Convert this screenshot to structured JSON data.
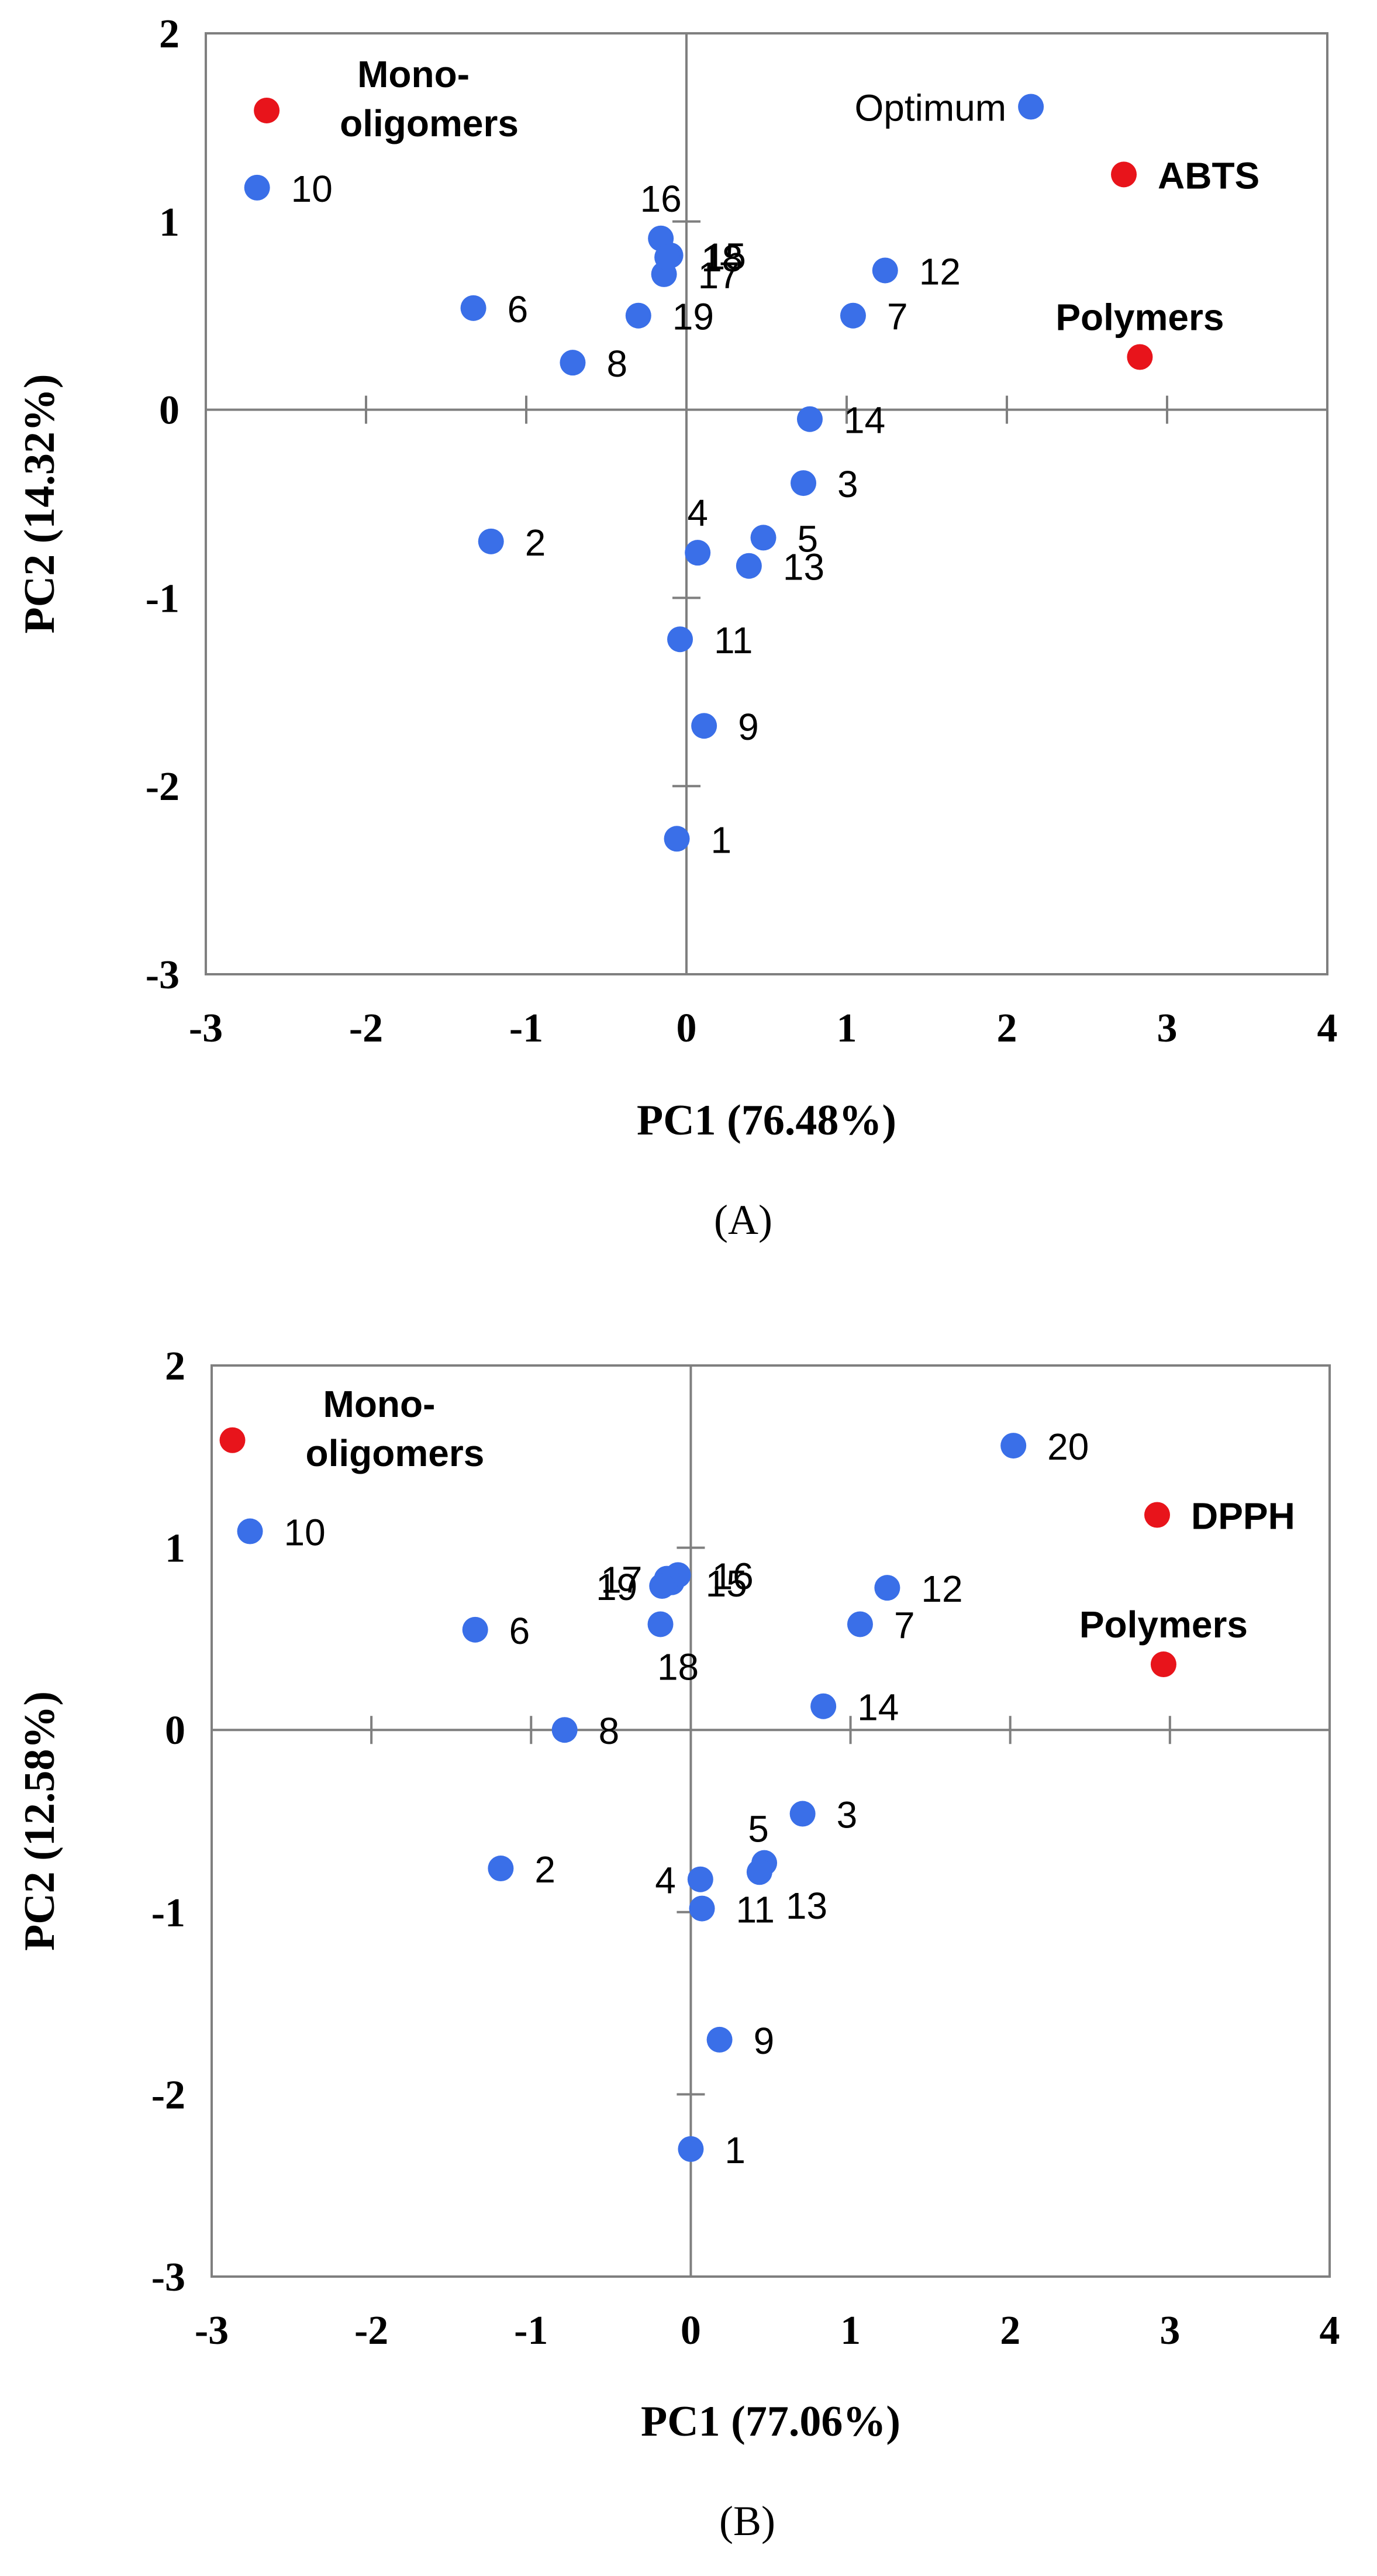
{
  "colors": {
    "sample": "#3A6FE8",
    "variable": "#E8141B",
    "frame": "#7F7F7F",
    "text": "#000000"
  },
  "chart_data": [
    {
      "type": "scatter",
      "panel_label": "(A)",
      "xlabel": "PC1 (76.48%)",
      "ylabel": "PC2 (14.32%)",
      "xlim": [
        -3,
        4
      ],
      "ylim": [
        -3,
        2
      ],
      "xticks": [
        "-3",
        "-2",
        "-1",
        "0",
        "1",
        "2",
        "3",
        "4"
      ],
      "yticks": [
        "2",
        "1",
        "0",
        "-1",
        "-2",
        "-3"
      ],
      "points": [
        {
          "label": "1",
          "x": -0.06,
          "y": -2.28,
          "group": "sample",
          "label_pos": "right"
        },
        {
          "label": "2",
          "x": -1.22,
          "y": -0.7,
          "group": "sample",
          "label_pos": "right"
        },
        {
          "label": "3",
          "x": 0.73,
          "y": -0.39,
          "group": "sample",
          "label_pos": "right"
        },
        {
          "label": "4",
          "x": 0.07,
          "y": -0.76,
          "group": "sample",
          "label_pos": "above"
        },
        {
          "label": "5",
          "x": 0.48,
          "y": -0.68,
          "group": "sample",
          "label_pos": "right"
        },
        {
          "label": "6",
          "x": -1.33,
          "y": 0.54,
          "group": "sample",
          "label_pos": "right"
        },
        {
          "label": "7",
          "x": 1.04,
          "y": 0.5,
          "group": "sample",
          "label_pos": "right"
        },
        {
          "label": "8",
          "x": -0.71,
          "y": 0.25,
          "group": "sample",
          "label_pos": "right"
        },
        {
          "label": "9",
          "x": 0.11,
          "y": -1.68,
          "group": "sample",
          "label_pos": "right"
        },
        {
          "label": "10",
          "x": -2.68,
          "y": 1.18,
          "group": "sample",
          "label_pos": "right"
        },
        {
          "label": "11",
          "x": -0.04,
          "y": -1.22,
          "group": "sample",
          "label_pos": "right"
        },
        {
          "label": "12",
          "x": 1.24,
          "y": 0.74,
          "group": "sample",
          "label_pos": "right"
        },
        {
          "label": "13",
          "x": 0.39,
          "y": -0.83,
          "group": "sample",
          "label_pos": "right"
        },
        {
          "label": "14",
          "x": 0.77,
          "y": -0.05,
          "group": "sample",
          "label_pos": "right"
        },
        {
          "label": "15",
          "x": -0.1,
          "y": 0.82,
          "group": "sample",
          "label_pos": "right"
        },
        {
          "label": "16",
          "x": -0.16,
          "y": 0.91,
          "group": "sample",
          "label_pos": "above"
        },
        {
          "label": "17",
          "x": -0.14,
          "y": 0.72,
          "group": "sample",
          "label_pos": "right"
        },
        {
          "label": "18",
          "x": -0.12,
          "y": 0.81,
          "group": "sample",
          "label_pos": "right"
        },
        {
          "label": "19",
          "x": -0.3,
          "y": 0.5,
          "group": "sample",
          "label_pos": "right"
        },
        {
          "label": "Optimum",
          "x": 2.15,
          "y": 1.61,
          "group": "sample",
          "label_pos": "left"
        },
        {
          "label": "Mono-\noligomers",
          "x": -2.62,
          "y": 1.59,
          "group": "variable",
          "label_pos": "right-block"
        },
        {
          "label": "ABTS",
          "x": 2.73,
          "y": 1.25,
          "group": "variable",
          "label_pos": "right"
        },
        {
          "label": "Polymers",
          "x": 2.83,
          "y": 0.28,
          "group": "variable",
          "label_pos": "above"
        }
      ]
    },
    {
      "type": "scatter",
      "panel_label": "(B)",
      "xlabel": "PC1 (77.06%)",
      "ylabel": "PC2 (12.58%)",
      "xlim": [
        -3,
        4
      ],
      "ylim": [
        -3,
        2
      ],
      "xticks": [
        "-3",
        "-2",
        "-1",
        "0",
        "1",
        "2",
        "3",
        "4"
      ],
      "yticks": [
        "2",
        "1",
        "0",
        "-1",
        "-2",
        "-3"
      ],
      "points": [
        {
          "label": "1",
          "x": 0.0,
          "y": -2.3,
          "group": "sample",
          "label_pos": "right"
        },
        {
          "label": "2",
          "x": -1.19,
          "y": -0.76,
          "group": "sample",
          "label_pos": "right"
        },
        {
          "label": "3",
          "x": 0.7,
          "y": -0.46,
          "group": "sample",
          "label_pos": "right"
        },
        {
          "label": "4",
          "x": 0.06,
          "y": -0.82,
          "group": "sample",
          "label_pos": "left"
        },
        {
          "label": "5",
          "x": 0.46,
          "y": -0.73,
          "group": "sample",
          "label_pos": "above-left"
        },
        {
          "label": "6",
          "x": -1.35,
          "y": 0.55,
          "group": "sample",
          "label_pos": "right"
        },
        {
          "label": "7",
          "x": 1.06,
          "y": 0.58,
          "group": "sample",
          "label_pos": "right"
        },
        {
          "label": "8",
          "x": -0.79,
          "y": 0.0,
          "group": "sample",
          "label_pos": "right"
        },
        {
          "label": "9",
          "x": 0.18,
          "y": -1.7,
          "group": "sample",
          "label_pos": "right"
        },
        {
          "label": "10",
          "x": -2.76,
          "y": 1.09,
          "group": "sample",
          "label_pos": "right"
        },
        {
          "label": "11",
          "x": 0.07,
          "y": -0.98,
          "group": "sample",
          "label_pos": "right"
        },
        {
          "label": "12",
          "x": 1.23,
          "y": 0.78,
          "group": "sample",
          "label_pos": "right"
        },
        {
          "label": "13",
          "x": 0.43,
          "y": -0.78,
          "group": "sample",
          "label_pos": "below-right"
        },
        {
          "label": "14",
          "x": 0.83,
          "y": 0.13,
          "group": "sample",
          "label_pos": "right"
        },
        {
          "label": "15",
          "x": -0.12,
          "y": 0.81,
          "group": "sample",
          "label_pos": "right"
        },
        {
          "label": "16",
          "x": -0.08,
          "y": 0.85,
          "group": "sample",
          "label_pos": "right"
        },
        {
          "label": "17",
          "x": -0.15,
          "y": 0.83,
          "group": "sample",
          "label_pos": "left"
        },
        {
          "label": "18",
          "x": -0.19,
          "y": 0.58,
          "group": "sample",
          "label_pos": "below"
        },
        {
          "label": "19",
          "x": -0.18,
          "y": 0.79,
          "group": "sample",
          "label_pos": "left"
        },
        {
          "label": "20",
          "x": 2.02,
          "y": 1.56,
          "group": "sample",
          "label_pos": "right"
        },
        {
          "label": "Mono-\noligomers",
          "x": -2.87,
          "y": 1.59,
          "group": "variable",
          "label_pos": "right-block"
        },
        {
          "label": "DPPH",
          "x": 2.92,
          "y": 1.18,
          "group": "variable",
          "label_pos": "right"
        },
        {
          "label": "Polymers",
          "x": 2.96,
          "y": 0.36,
          "group": "variable",
          "label_pos": "above"
        }
      ]
    }
  ]
}
